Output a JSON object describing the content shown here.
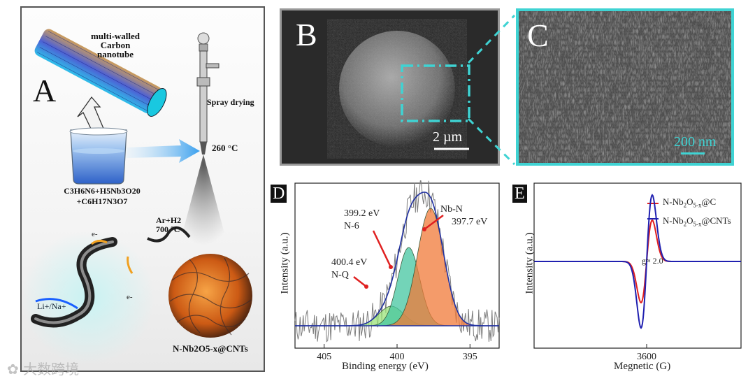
{
  "panels": {
    "A": {
      "label": "A",
      "nanotube_label_line1": "multi-walled",
      "nanotube_label_line2": "Carbon nanotube",
      "spray_label": "Spray drying",
      "temp_label": "260 °C",
      "precursor_line1": "C3H6N6+H5Nb3O20",
      "precursor_line2": "+C6H17N3O7",
      "gas_label": "Ar+H2",
      "anneal_temp": "700 °C",
      "electron1": "e-",
      "electron2": "e-",
      "ion_label": "Li+/Na+",
      "product_label": "N-Nb2O5-x@CNTs"
    },
    "B": {
      "label": "B",
      "scale_bar": "2 µm"
    },
    "C": {
      "label": "C",
      "scale_bar": "200 nm"
    },
    "D": {
      "label": "D",
      "ann_nn": "Nb-N",
      "ann_nn_val": "397.7 eV",
      "ann_n6_val": "399.2 eV",
      "ann_n6": "N-6",
      "ann_nq_val": "400.4 eV",
      "ann_nq": "N-Q"
    },
    "E": {
      "label": "E",
      "g_label": "g≈ 2.0"
    }
  },
  "watermark": "大数跨境",
  "colors": {
    "cyan": "#3fd3d3",
    "red": "#e02020",
    "blue": "#2020b0",
    "gray": "#888888"
  },
  "chart_data": [
    {
      "type": "line",
      "id": "D",
      "title": "",
      "xlabel": "Binding energy (eV)",
      "ylabel": "Intensity (a.u.)",
      "xlim": [
        407,
        393
      ],
      "x_ticks": [
        405,
        400,
        395
      ],
      "x_tick_labels": [
        "405",
        "400",
        "395"
      ],
      "series": [
        {
          "name": "N-Q",
          "center": 400.4,
          "amplitude": 0.2,
          "sigma": 0.85,
          "color": "#9be37a"
        },
        {
          "name": "N-6",
          "center": 399.2,
          "amplitude": 0.8,
          "sigma": 0.75,
          "color": "#44c6a0"
        },
        {
          "name": "Nb-N",
          "center": 397.7,
          "amplitude": 1.2,
          "sigma": 0.9,
          "color": "#f07a38"
        }
      ]
    },
    {
      "type": "line",
      "id": "E",
      "title": "",
      "xlabel": "Megnetic (G)",
      "ylabel": "Intensity (a.u.)",
      "x_ticks": [
        3600
      ],
      "x_tick_labels": [
        "3600"
      ],
      "series": [
        {
          "name": "N-Nb2O5-x@C",
          "legend_main": "N-Nb",
          "legend_sub": "2",
          "legend_mid": "O",
          "legend_sub2": "5-x",
          "legend_end": "@C",
          "color": "#e02020",
          "amplitude": 0.62
        },
        {
          "name": "N-Nb2O5-x@CNTs",
          "legend_main": "N-Nb",
          "legend_sub": "2",
          "legend_mid": "O",
          "legend_sub2": "5-x",
          "legend_end": "@CNTs",
          "color": "#2020b0",
          "amplitude": 1.0
        }
      ]
    }
  ]
}
